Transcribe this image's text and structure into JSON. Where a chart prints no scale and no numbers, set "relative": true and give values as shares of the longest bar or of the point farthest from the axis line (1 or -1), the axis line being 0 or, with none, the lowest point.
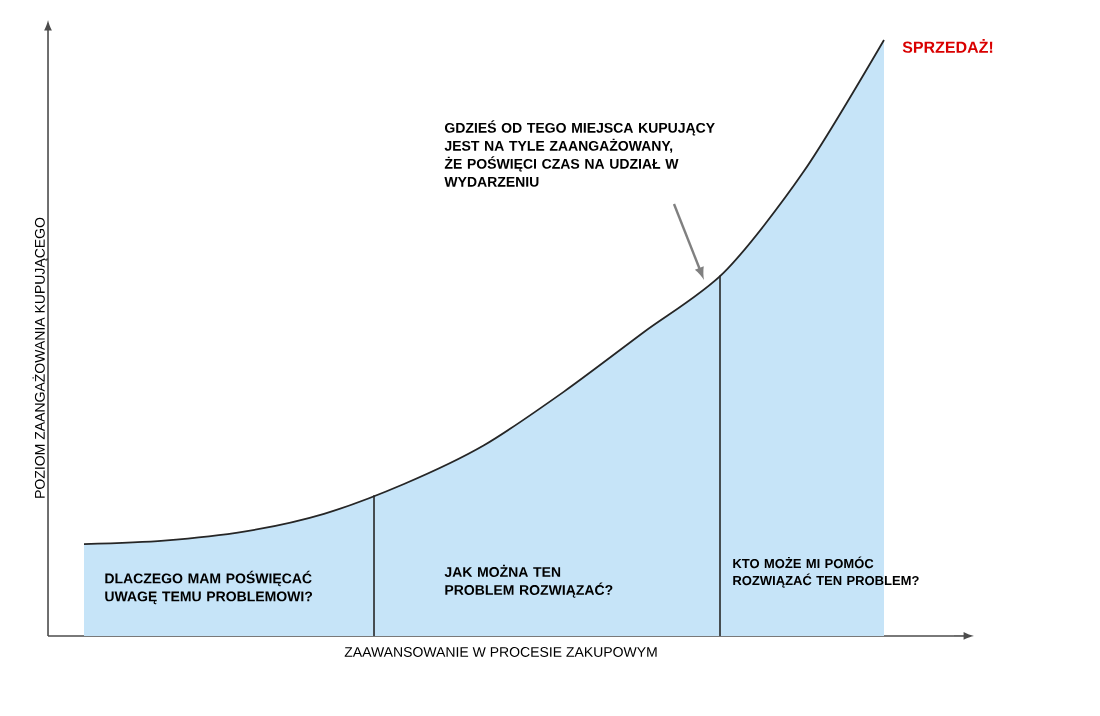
{
  "chart_data": {
    "type": "area",
    "relative": true,
    "xlabel": "ZAAWANSOWANIE W PROCESIE ZAKUPOWYM",
    "ylabel": "POZIOM ZAANGAŻOWANIA KUPUJĄCEGO",
    "categories": [
      null,
      null,
      null,
      null,
      null,
      null,
      null,
      null,
      null,
      null,
      null
    ],
    "series": [
      {
        "color": "#c6e4f8",
        "values": [
          0.154,
          0.16,
          0.175,
          0.205,
          0.255,
          0.32,
          0.41,
          0.51,
          0.61,
          0.78,
          1.0
        ]
      }
    ],
    "annotations": [
      "SPRZEDAŻ!",
      "GDZIEŚ OD TEGO MIEJSCA KUPUJĄCY JEST NA TYLE ZAANGAŻOWANY, ŻE POŚWIĘCI CZAS NA UDZIAŁ W WYDARZENIU",
      "DLACZEGO MAM POŚWIĘCAĆ UWAGĘ TEMU PROBLEMOWI?",
      "JAK MOŻNA TEN PROBLEM ROZWIĄZAĆ?",
      "KTO MOŻE MI POMÓC ROZWIĄZAĆ TEN PROBLEM?"
    ]
  }
}
